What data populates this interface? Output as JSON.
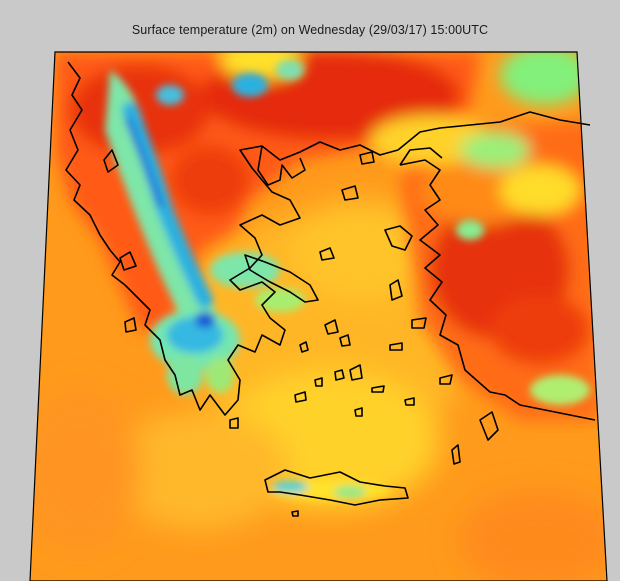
{
  "title": "Surface temperature (2m) on Wednesday (29/03/17) 15:00UTC",
  "map": {
    "region": "Greece and Aegean Sea with western Turkey",
    "variable": "surface temperature (2m)",
    "colors": {
      "background": "#c9c9c9",
      "sea_warm": "#ff9a1c",
      "sea_mid": "#ffb326",
      "sea_cool": "#ffd52a",
      "land_hot": "#e52a10",
      "land_warm": "#ff6a14",
      "land_mild": "#ffe028",
      "land_cool": "#82f07a",
      "land_cold": "#24b6e0",
      "land_coldest": "#1a5ad6",
      "coastline": "#000000"
    }
  }
}
